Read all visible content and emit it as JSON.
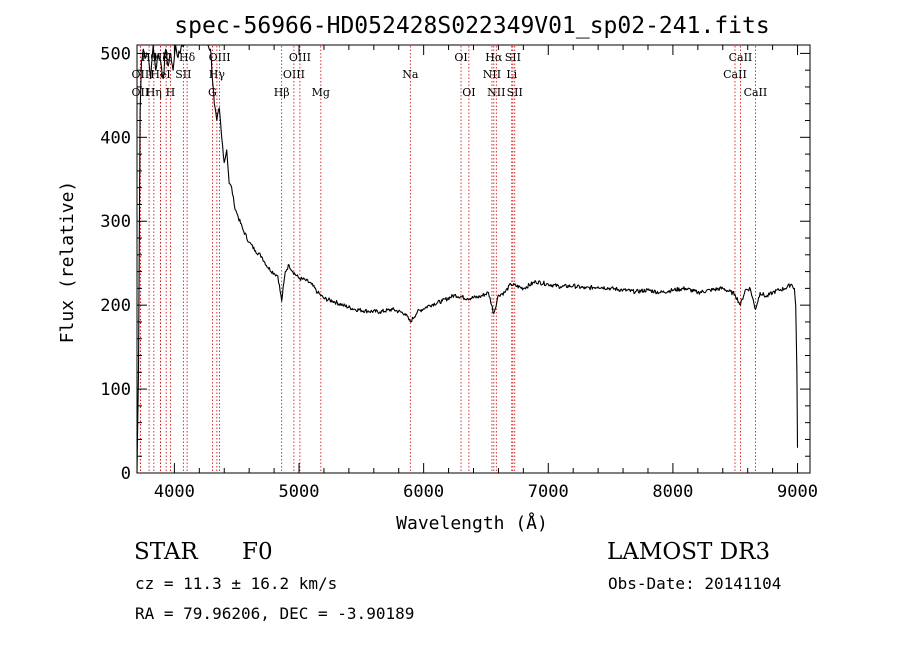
{
  "chart_data": {
    "type": "line",
    "title": "spec-56966-HD052428S022349V01_sp02-241.fits",
    "xlabel": "Wavelength (Å)",
    "ylabel": "Flux (relative)",
    "xlim": [
      3700,
      9100
    ],
    "ylim": [
      0,
      510
    ],
    "xticks": [
      4000,
      5000,
      6000,
      7000,
      8000,
      9000
    ],
    "xtick_labels": [
      "4000",
      "5000",
      "6000",
      "7000",
      "8000",
      "9000"
    ],
    "yticks": [
      0,
      100,
      200,
      300,
      400,
      500
    ],
    "ytick_labels": [
      "0",
      "100",
      "200",
      "300",
      "400",
      "500"
    ],
    "series": [
      {
        "name": "spectrum",
        "x": [
          3700,
          3712,
          3725,
          3735,
          3750,
          3770,
          3790,
          3810,
          3830,
          3850,
          3870,
          3890,
          3910,
          3930,
          3950,
          3970,
          3990,
          4010,
          4030,
          4060,
          4100,
          4150,
          4200,
          4250,
          4290,
          4320,
          4340,
          4360,
          4380,
          4400,
          4420,
          4440,
          4460,
          4480,
          4500,
          4550,
          4600,
          4650,
          4700,
          4750,
          4800,
          4830,
          4861,
          4890,
          4920,
          4950,
          5000,
          5050,
          5100,
          5150,
          5200,
          5270,
          5350,
          5450,
          5550,
          5650,
          5750,
          5850,
          5893,
          5950,
          6050,
          6150,
          6250,
          6350,
          6450,
          6520,
          6563,
          6600,
          6650,
          6700,
          6800,
          6900,
          7000,
          7100,
          7200,
          7300,
          7400,
          7500,
          7600,
          7700,
          7800,
          7900,
          8000,
          8100,
          8200,
          8300,
          8400,
          8498,
          8542,
          8580,
          8620,
          8662,
          8700,
          8750,
          8800,
          8850,
          8900,
          8950,
          8975,
          8985,
          8995,
          9000
        ],
        "y": [
          0,
          120,
          430,
          490,
          505,
          495,
          500,
          470,
          510,
          480,
          500,
          490,
          470,
          505,
          485,
          500,
          480,
          510,
          495,
          510,
          515,
          515,
          515,
          515,
          505,
          440,
          420,
          435,
          400,
          370,
          385,
          345,
          340,
          320,
          310,
          290,
          275,
          265,
          258,
          245,
          238,
          235,
          205,
          240,
          248,
          240,
          232,
          230,
          225,
          215,
          208,
          205,
          200,
          195,
          193,
          192,
          195,
          190,
          180,
          192,
          200,
          205,
          212,
          208,
          210,
          215,
          190,
          212,
          215,
          225,
          220,
          228,
          225,
          222,
          223,
          220,
          222,
          220,
          218,
          216,
          218,
          215,
          218,
          220,
          215,
          218,
          220,
          213,
          200,
          218,
          220,
          195,
          215,
          210,
          215,
          218,
          220,
          225,
          220,
          200,
          120,
          30
        ]
      }
    ],
    "line_markers": [
      {
        "name": "OII",
        "wavelength": 3727,
        "row": 3
      },
      {
        "name": "OII",
        "wavelength": 3727,
        "row": 2
      },
      {
        "name": "Hθ",
        "wavelength": 3797,
        "row": 1
      },
      {
        "name": "Hη",
        "wavelength": 3835,
        "row": 3
      },
      {
        "name": "Hζ",
        "wavelength": 3889,
        "row": 1
      },
      {
        "name": "HeI",
        "wavelength": 3889,
        "row": 2
      },
      {
        "name": "K",
        "wavelength": 3934,
        "row": 1
      },
      {
        "name": "H",
        "wavelength": 3968,
        "row": 3
      },
      {
        "name": "SII",
        "wavelength": 4072,
        "row": 2
      },
      {
        "name": "Hδ",
        "wavelength": 4102,
        "row": 1
      },
      {
        "name": "G",
        "wavelength": 4305,
        "row": 3
      },
      {
        "name": "Hγ",
        "wavelength": 4341,
        "row": 2
      },
      {
        "name": "OIII",
        "wavelength": 4363,
        "row": 1
      },
      {
        "name": "Hβ",
        "wavelength": 4861,
        "row": 3
      },
      {
        "name": "OIII",
        "wavelength": 4959,
        "row": 2
      },
      {
        "name": "OIII",
        "wavelength": 5007,
        "row": 1
      },
      {
        "name": "Mg",
        "wavelength": 5175,
        "row": 3
      },
      {
        "name": "Na",
        "wavelength": 5893,
        "row": 2
      },
      {
        "name": "OI",
        "wavelength": 6300,
        "row": 1
      },
      {
        "name": "OI",
        "wavelength": 6363,
        "row": 3
      },
      {
        "name": "NII",
        "wavelength": 6548,
        "row": 2
      },
      {
        "name": "Hα",
        "wavelength": 6563,
        "row": 1
      },
      {
        "name": "NII",
        "wavelength": 6583,
        "row": 3
      },
      {
        "name": "Li",
        "wavelength": 6707,
        "row": 2
      },
      {
        "name": "SII",
        "wavelength": 6716,
        "row": 1
      },
      {
        "name": "SII",
        "wavelength": 6731,
        "row": 3
      },
      {
        "name": "CaII",
        "wavelength": 8498,
        "row": 2
      },
      {
        "name": "CaII",
        "wavelength": 8542,
        "row": 1
      },
      {
        "name": "CaII",
        "wavelength": 8662,
        "row": 3
      }
    ]
  },
  "info": {
    "object_class": "STAR",
    "subclass": "F0",
    "survey": "LAMOST DR3",
    "cz": "cz = 11.3 ± 16.2 km/s",
    "obs_date": "Obs-Date: 20141104",
    "coords": "RA =  79.96206, DEC =  -3.90189"
  },
  "colors": {
    "marker_line": "#cc0000",
    "spectrum": "#000000",
    "axes": "#000000"
  }
}
